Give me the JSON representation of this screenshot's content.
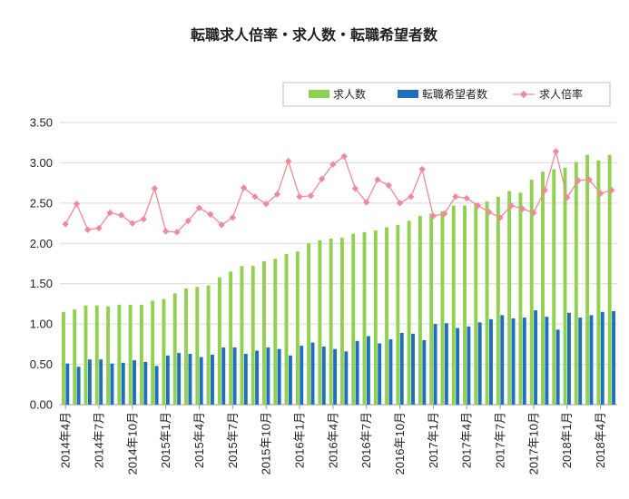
{
  "chart_data": {
    "type": "bar",
    "title": "転職求人倍率・求人数・転職希望者数",
    "xlabel": "",
    "ylabel": "",
    "ylim": [
      0,
      3.5
    ],
    "yticks": [
      "0.00",
      "0.50",
      "1.00",
      "1.50",
      "2.00",
      "2.50",
      "3.00",
      "3.50"
    ],
    "grid": true,
    "legend_position": "top-right",
    "categories": [
      "2014年4月",
      "2014年5月",
      "2014年6月",
      "2014年7月",
      "2014年8月",
      "2014年9月",
      "2014年10月",
      "2014年11月",
      "2014年12月",
      "2015年1月",
      "2015年2月",
      "2015年3月",
      "2015年4月",
      "2015年5月",
      "2015年6月",
      "2015年7月",
      "2015年8月",
      "2015年9月",
      "2015年10月",
      "2015年11月",
      "2015年12月",
      "2016年1月",
      "2016年2月",
      "2016年3月",
      "2016年4月",
      "2016年5月",
      "2016年6月",
      "2016年7月",
      "2016年8月",
      "2016年9月",
      "2016年10月",
      "2016年11月",
      "2016年12月",
      "2017年1月",
      "2017年2月",
      "2017年3月",
      "2017年4月",
      "2017年5月",
      "2017年6月",
      "2017年7月",
      "2017年8月",
      "2017年9月",
      "2017年10月",
      "2017年11月",
      "2017年12月",
      "2018年1月",
      "2018年2月",
      "2018年3月",
      "2018年4月",
      "2018年5月"
    ],
    "series": [
      {
        "name": "求人数",
        "kind": "bar",
        "color": "#92d050",
        "values": [
          1.15,
          1.18,
          1.23,
          1.23,
          1.22,
          1.24,
          1.24,
          1.24,
          1.29,
          1.31,
          1.38,
          1.44,
          1.46,
          1.48,
          1.58,
          1.65,
          1.72,
          1.72,
          1.78,
          1.81,
          1.87,
          1.9,
          2.0,
          2.04,
          2.06,
          2.07,
          2.12,
          2.14,
          2.16,
          2.2,
          2.23,
          2.28,
          2.34,
          2.37,
          2.4,
          2.47,
          2.47,
          2.5,
          2.52,
          2.58,
          2.65,
          2.63,
          2.79,
          2.89,
          2.92,
          2.94,
          3.01,
          3.1,
          3.03,
          3.1
        ]
      },
      {
        "name": "転職希望者数",
        "kind": "bar",
        "color": "#1f6fbf",
        "values": [
          0.51,
          0.47,
          0.56,
          0.56,
          0.51,
          0.52,
          0.55,
          0.53,
          0.48,
          0.61,
          0.64,
          0.63,
          0.59,
          0.62,
          0.71,
          0.71,
          0.63,
          0.67,
          0.71,
          0.69,
          0.61,
          0.73,
          0.77,
          0.72,
          0.69,
          0.66,
          0.79,
          0.85,
          0.76,
          0.81,
          0.89,
          0.88,
          0.8,
          1.0,
          1.01,
          0.95,
          0.97,
          1.02,
          1.06,
          1.11,
          1.07,
          1.08,
          1.17,
          1.09,
          0.93,
          1.14,
          1.08,
          1.11,
          1.15,
          1.16
        ]
      },
      {
        "name": "求人倍率",
        "kind": "line",
        "color": "#f08a9a",
        "values": [
          2.24,
          2.49,
          2.17,
          2.19,
          2.38,
          2.35,
          2.25,
          2.3,
          2.68,
          2.15,
          2.14,
          2.28,
          2.44,
          2.36,
          2.23,
          2.32,
          2.69,
          2.58,
          2.49,
          2.61,
          3.02,
          2.58,
          2.59,
          2.8,
          2.98,
          3.08,
          2.68,
          2.51,
          2.79,
          2.72,
          2.5,
          2.58,
          2.92,
          2.34,
          2.37,
          2.58,
          2.56,
          2.47,
          2.39,
          2.32,
          2.47,
          2.43,
          2.38,
          2.66,
          3.14,
          2.57,
          2.78,
          2.79,
          2.62,
          2.66
        ]
      }
    ],
    "x_tick_labels": [
      {
        "index": 0,
        "label": "2014年4月"
      },
      {
        "index": 3,
        "label": "2014年7月"
      },
      {
        "index": 6,
        "label": "2014年10月"
      },
      {
        "index": 9,
        "label": "2015年1月"
      },
      {
        "index": 12,
        "label": "2015年4月"
      },
      {
        "index": 15,
        "label": "2015年7月"
      },
      {
        "index": 18,
        "label": "2015年10月"
      },
      {
        "index": 21,
        "label": "2016年1月"
      },
      {
        "index": 24,
        "label": "2016年4月"
      },
      {
        "index": 27,
        "label": "2016年7月"
      },
      {
        "index": 30,
        "label": "2016年10月"
      },
      {
        "index": 33,
        "label": "2017年1月"
      },
      {
        "index": 36,
        "label": "2017年4月"
      },
      {
        "index": 39,
        "label": "2017年7月"
      },
      {
        "index": 42,
        "label": "2017年10月"
      },
      {
        "index": 45,
        "label": "2018年1月"
      },
      {
        "index": 48,
        "label": "2018年4月"
      }
    ]
  }
}
